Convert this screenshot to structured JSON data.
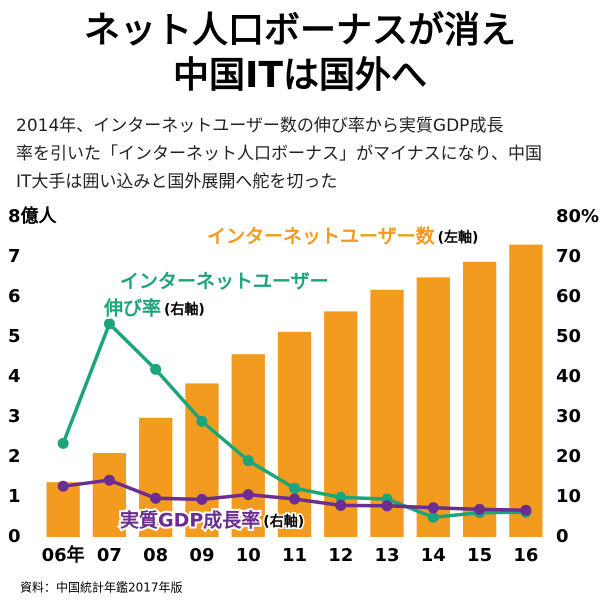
{
  "title_lines": [
    "ネット人口ボーナスが消え",
    "中国ITは国外へ"
  ],
  "subtitle_lines": [
    "2014年、インターネットユーザー数の伸び率から実質GDP成長",
    "率を引いた「インターネット人口ボーナス」がマイナスになり、中国",
    "IT大手は囲い込みと国外展開へ舵を切った"
  ],
  "source": "資料：中国統計年鑑2017年版",
  "chart_data": {
    "type": "bar-line",
    "categories": [
      "06年",
      "07",
      "08",
      "09",
      "10",
      "11",
      "12",
      "13",
      "14",
      "15",
      "16"
    ],
    "ylim": [
      0,
      8
    ],
    "yticks": [
      0,
      1,
      2,
      3,
      4,
      5,
      6,
      7,
      {
        "value": 8,
        "label": "8億人"
      }
    ],
    "y2lim": [
      0,
      80
    ],
    "y2ticks": [
      0,
      10,
      20,
      30,
      40,
      50,
      60,
      70,
      {
        "value": 80,
        "label": "80%"
      }
    ],
    "series": [
      {
        "name": [
          "インターネットユーザー数"
        ],
        "axis_note": "(左軸)",
        "type": "bar",
        "color": "#f39b1f",
        "values": [
          1.37,
          2.1,
          2.98,
          3.84,
          4.57,
          5.13,
          5.64,
          6.18,
          6.49,
          6.88,
          7.31
        ]
      },
      {
        "name": [
          "インターネットユーザー",
          "伸び率"
        ],
        "axis_note": "(右軸)",
        "type": "line",
        "axis": "y2",
        "color": "#1ca57a",
        "values": [
          23.4,
          53.3,
          41.9,
          28.9,
          19.1,
          12.2,
          9.9,
          9.5,
          4.9,
          6.1,
          6.2
        ]
      },
      {
        "name": [
          "実質GDP成長率"
        ],
        "axis_note": "(右軸)",
        "type": "line",
        "axis": "y2",
        "color": "#6b2d8f",
        "values": [
          12.7,
          14.2,
          9.7,
          9.4,
          10.6,
          9.5,
          7.9,
          7.8,
          7.3,
          6.9,
          6.7
        ]
      }
    ]
  }
}
